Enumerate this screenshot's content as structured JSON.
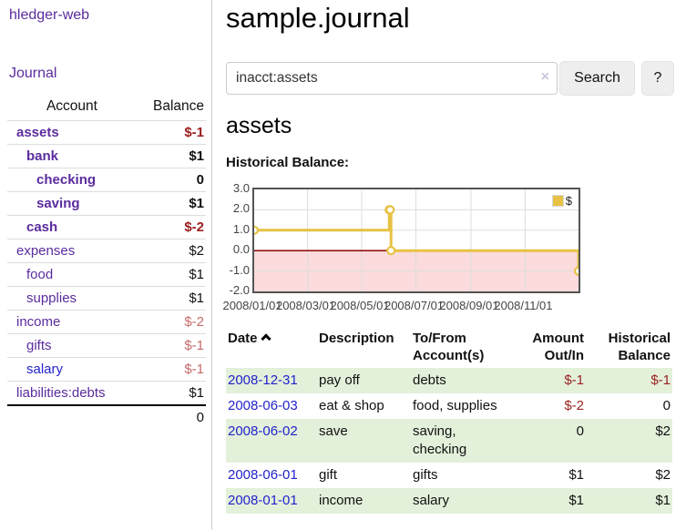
{
  "app": {
    "brand": "hledger-web",
    "nav_journal": "Journal"
  },
  "sidebar": {
    "headers": {
      "account": "Account",
      "balance": "Balance"
    },
    "accounts": [
      {
        "name": "assets",
        "balance": "$-1",
        "indent": 1,
        "bold": true,
        "tone": "neg"
      },
      {
        "name": "bank",
        "balance": "$1",
        "indent": 2,
        "bold": true,
        "tone": ""
      },
      {
        "name": "checking",
        "balance": "0",
        "indent": 3,
        "bold": true,
        "tone": ""
      },
      {
        "name": "saving",
        "balance": "$1",
        "indent": 3,
        "bold": true,
        "tone": ""
      },
      {
        "name": "cash",
        "balance": "$-2",
        "indent": 2,
        "bold": true,
        "tone": "neg"
      },
      {
        "name": "expenses",
        "balance": "$2",
        "indent": 1,
        "bold": false,
        "tone": ""
      },
      {
        "name": "food",
        "balance": "$1",
        "indent": 2,
        "bold": false,
        "tone": ""
      },
      {
        "name": "supplies",
        "balance": "$1",
        "indent": 2,
        "bold": false,
        "tone": ""
      },
      {
        "name": "income",
        "balance": "$-2",
        "indent": 1,
        "bold": false,
        "tone": "dim"
      },
      {
        "name": "gifts",
        "balance": "$-1",
        "indent": 2,
        "bold": false,
        "tone": "dim"
      },
      {
        "name": "salary",
        "balance": "$-1",
        "indent": 2,
        "bold": false,
        "tone": "dim",
        "blue": true
      },
      {
        "name": "liabilities:debts",
        "balance": "$1",
        "indent": 1,
        "bold": false,
        "tone": ""
      }
    ],
    "total": "0"
  },
  "main": {
    "title": "sample.journal",
    "search": {
      "value": "inacct:assets",
      "clear_icon": "×",
      "button_label": "Search",
      "help_label": "?"
    },
    "account_heading": "assets",
    "chart_label": "Historical Balance:"
  },
  "chart_data": {
    "type": "line",
    "step": true,
    "title": "Historical Balance",
    "series": [
      {
        "name": "$",
        "color": "#e7c244",
        "points": [
          [
            "2008-01-01",
            1
          ],
          [
            "2008-06-01",
            2
          ],
          [
            "2008-06-02",
            2
          ],
          [
            "2008-06-03",
            0
          ],
          [
            "2008-12-31",
            -1
          ]
        ]
      }
    ],
    "x_range": [
      "2008-01-01",
      "2008-12-31"
    ],
    "x_ticks": [
      {
        "label": "2008/01/01",
        "date": "2008-01-01"
      },
      {
        "label": "2008/03/01",
        "date": "2008-03-01"
      },
      {
        "label": "2008/05/01",
        "date": "2008-05-01"
      },
      {
        "label": "2008/07/01",
        "date": "2008-07-01"
      },
      {
        "label": "2008/09/01",
        "date": "2008-09-01"
      },
      {
        "label": "2008/11/01",
        "date": "2008-11-01"
      }
    ],
    "y_ticks": [
      3.0,
      2.0,
      1.0,
      0.0,
      -1.0,
      -2.0
    ],
    "ylim": [
      -2,
      3
    ],
    "legend": {
      "label": "$",
      "position": "top-right"
    },
    "colors": {
      "line": "#e7c244",
      "zero_line": "#8e0000",
      "negative_fill": "#fbdbdb",
      "grid": "#dddddd",
      "border": "#545454"
    },
    "grid": true
  },
  "register": {
    "headers": {
      "date": "Date",
      "description": "Description",
      "account": [
        "To/From",
        "Account(s)"
      ],
      "amount": [
        "Amount",
        "Out/In"
      ],
      "balance": [
        "Historical",
        "Balance"
      ]
    },
    "rows": [
      {
        "date": "2008-12-31",
        "description": "pay off",
        "accounts": "debts",
        "amount": "$-1",
        "amount_neg": true,
        "balance": "$-1",
        "balance_neg": true
      },
      {
        "date": "2008-06-03",
        "description": "eat & shop",
        "accounts": "food, supplies",
        "amount": "$-2",
        "amount_neg": true,
        "balance": "0",
        "balance_neg": false
      },
      {
        "date": "2008-06-02",
        "description": "save",
        "accounts": "saving, checking",
        "amount": "0",
        "amount_neg": false,
        "balance": "$2",
        "balance_neg": false
      },
      {
        "date": "2008-06-01",
        "description": "gift",
        "accounts": "gifts",
        "amount": "$1",
        "amount_neg": false,
        "balance": "$2",
        "balance_neg": false
      },
      {
        "date": "2008-01-01",
        "description": "income",
        "accounts": "salary",
        "amount": "$1",
        "amount_neg": false,
        "balance": "$1",
        "balance_neg": false
      }
    ]
  }
}
